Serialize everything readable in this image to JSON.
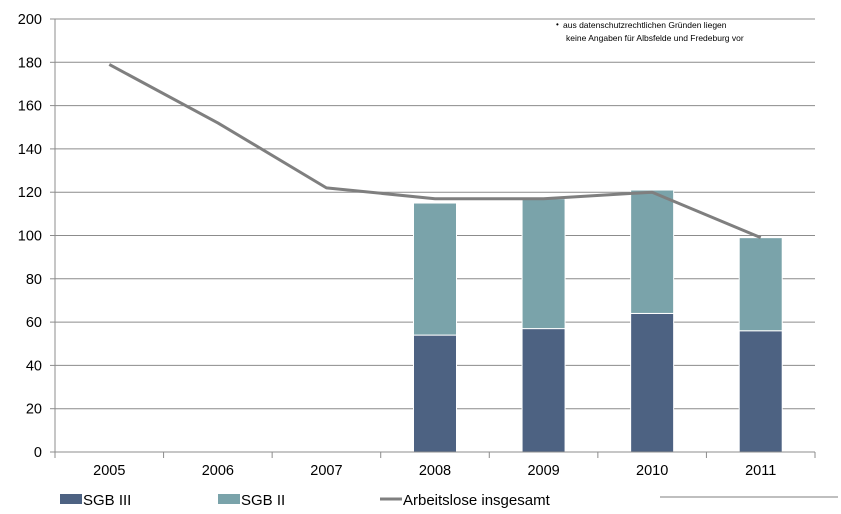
{
  "chart_data": {
    "type": "bar",
    "categories": [
      "2005",
      "2006",
      "2007",
      "2008",
      "2009",
      "2010",
      "2011"
    ],
    "series": [
      {
        "name": "SGB III",
        "type": "bar",
        "stack": "total",
        "color": "#4d6282",
        "values": [
          null,
          null,
          null,
          54,
          57,
          64,
          56
        ]
      },
      {
        "name": "SGB II",
        "type": "bar",
        "stack": "total",
        "color": "#7aa3aa",
        "values": [
          null,
          null,
          null,
          61,
          60,
          57,
          43
        ]
      },
      {
        "name": "Arbeitslose insgesamt",
        "type": "line",
        "color": "#7f7f7f",
        "values": [
          179,
          152,
          122,
          117,
          117,
          120,
          99
        ]
      }
    ],
    "ylim": [
      0,
      200
    ],
    "yticks": [
      0,
      20,
      40,
      60,
      80,
      100,
      120,
      140,
      160,
      180,
      200
    ],
    "grid": true,
    "legend": "bottom",
    "annotation_lines": [
      "aus datenschutzrechtlichen  Gründen liegen",
      "keine Angaben für Albsfelde und Fredeburg vor"
    ],
    "annotation_bullet": "•"
  }
}
